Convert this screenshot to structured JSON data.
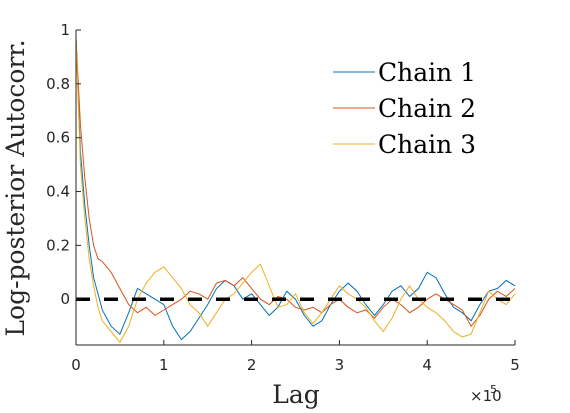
{
  "chart_data": {
    "type": "line",
    "title": "",
    "xlabel": "Lag",
    "ylabel": "Log-posterior Autocorr.",
    "x_exponent_label": "×10",
    "x_exponent_power": "5",
    "xlim": [
      0,
      5
    ],
    "ylim": [
      -0.17,
      1
    ],
    "x_ticks": [
      0,
      1,
      2,
      3,
      4,
      5
    ],
    "x_tick_labels": [
      "0",
      "1",
      "2",
      "3",
      "4",
      "5"
    ],
    "y_ticks": [
      0,
      0.2,
      0.4,
      0.6,
      0.8,
      1
    ],
    "y_tick_labels": [
      "0",
      "0.2",
      "0.4",
      "0.6",
      "0.8",
      "1"
    ],
    "grid": false,
    "legend_position": "top-right",
    "reference_line": {
      "y": 0,
      "style": "dashed",
      "color": "#000000"
    },
    "series": [
      {
        "name": "Chain 1",
        "color": "#0072BD",
        "x": [
          0,
          0.05,
          0.1,
          0.15,
          0.2,
          0.25,
          0.3,
          0.35,
          0.4,
          0.5,
          0.6,
          0.7,
          0.8,
          0.9,
          1.0,
          1.1,
          1.2,
          1.3,
          1.4,
          1.5,
          1.6,
          1.7,
          1.8,
          1.9,
          2.0,
          2.1,
          2.2,
          2.3,
          2.4,
          2.5,
          2.6,
          2.7,
          2.8,
          2.9,
          3.0,
          3.1,
          3.2,
          3.3,
          3.4,
          3.5,
          3.6,
          3.7,
          3.8,
          3.9,
          4.0,
          4.1,
          4.2,
          4.3,
          4.4,
          4.5,
          4.6,
          4.7,
          4.8,
          4.9,
          5.0
        ],
        "y": [
          0.97,
          0.55,
          0.35,
          0.2,
          0.08,
          0.02,
          -0.04,
          -0.07,
          -0.1,
          -0.13,
          -0.05,
          0.04,
          0.02,
          0.0,
          -0.02,
          -0.1,
          -0.15,
          -0.12,
          -0.07,
          -0.02,
          0.04,
          0.07,
          0.05,
          0.0,
          0.02,
          -0.02,
          -0.06,
          -0.03,
          0.03,
          0.0,
          -0.06,
          -0.1,
          -0.08,
          -0.02,
          0.03,
          0.06,
          0.03,
          -0.02,
          -0.06,
          -0.02,
          0.03,
          0.05,
          0.01,
          0.04,
          0.1,
          0.08,
          0.02,
          -0.03,
          -0.05,
          -0.08,
          -0.02,
          0.03,
          0.04,
          0.07,
          0.05
        ]
      },
      {
        "name": "Chain 2",
        "color": "#D95319",
        "x": [
          0,
          0.05,
          0.1,
          0.15,
          0.2,
          0.25,
          0.3,
          0.35,
          0.4,
          0.5,
          0.6,
          0.7,
          0.8,
          0.9,
          1.0,
          1.1,
          1.2,
          1.3,
          1.4,
          1.5,
          1.6,
          1.7,
          1.8,
          1.9,
          2.0,
          2.1,
          2.2,
          2.3,
          2.4,
          2.5,
          2.6,
          2.7,
          2.8,
          2.9,
          3.0,
          3.1,
          3.2,
          3.3,
          3.4,
          3.5,
          3.6,
          3.7,
          3.8,
          3.9,
          4.0,
          4.1,
          4.2,
          4.3,
          4.4,
          4.5,
          4.6,
          4.7,
          4.8,
          4.9,
          5.0
        ],
        "y": [
          0.97,
          0.65,
          0.45,
          0.3,
          0.2,
          0.15,
          0.14,
          0.12,
          0.1,
          0.04,
          -0.02,
          -0.05,
          -0.03,
          -0.06,
          -0.04,
          -0.02,
          0.0,
          0.03,
          0.02,
          0.0,
          0.06,
          0.07,
          0.05,
          0.08,
          0.04,
          0.0,
          -0.02,
          0.01,
          0.0,
          -0.03,
          -0.04,
          -0.03,
          -0.05,
          -0.02,
          0.0,
          -0.03,
          -0.05,
          -0.04,
          -0.07,
          -0.03,
          0.0,
          -0.02,
          -0.05,
          -0.03,
          0.0,
          0.02,
          0.0,
          -0.02,
          -0.04,
          -0.1,
          -0.06,
          0.0,
          0.03,
          0.01,
          0.04
        ]
      },
      {
        "name": "Chain 3",
        "color": "#EDB120",
        "x": [
          0,
          0.05,
          0.1,
          0.15,
          0.2,
          0.25,
          0.3,
          0.35,
          0.4,
          0.5,
          0.6,
          0.7,
          0.8,
          0.9,
          1.0,
          1.1,
          1.2,
          1.3,
          1.4,
          1.5,
          1.6,
          1.7,
          1.8,
          1.9,
          2.0,
          2.1,
          2.2,
          2.3,
          2.4,
          2.5,
          2.6,
          2.7,
          2.8,
          2.9,
          3.0,
          3.1,
          3.2,
          3.3,
          3.4,
          3.5,
          3.6,
          3.7,
          3.8,
          3.9,
          4.0,
          4.1,
          4.2,
          4.3,
          4.4,
          4.5,
          4.6,
          4.7,
          4.8,
          4.9,
          5.0
        ],
        "y": [
          0.97,
          0.5,
          0.3,
          0.15,
          0.05,
          -0.03,
          -0.08,
          -0.1,
          -0.12,
          -0.16,
          -0.1,
          0.0,
          0.06,
          0.1,
          0.12,
          0.08,
          0.04,
          -0.02,
          -0.05,
          -0.1,
          -0.05,
          0.0,
          0.02,
          0.06,
          0.1,
          0.13,
          0.05,
          -0.03,
          -0.02,
          0.02,
          -0.05,
          -0.09,
          -0.05,
          0.0,
          0.05,
          0.02,
          0.0,
          -0.03,
          -0.08,
          -0.12,
          -0.07,
          0.0,
          0.05,
          0.0,
          -0.03,
          -0.05,
          -0.08,
          -0.12,
          -0.14,
          -0.13,
          -0.05,
          0.03,
          0.0,
          -0.02,
          0.02
        ]
      }
    ]
  }
}
